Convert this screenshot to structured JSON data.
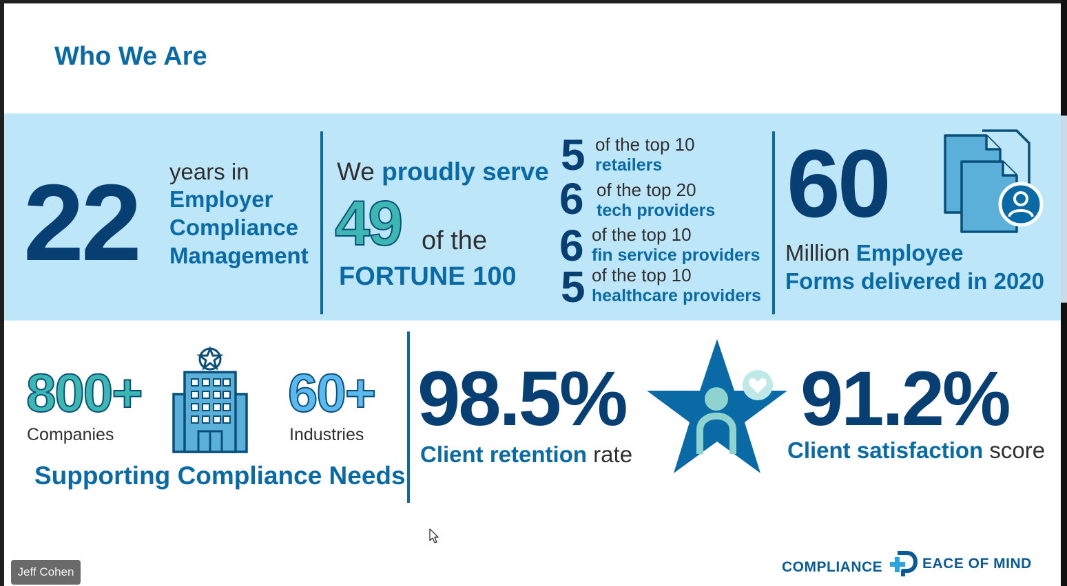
{
  "slide_title": "Who We Are",
  "years": {
    "number": "22",
    "line1": "years in",
    "line2": "Employer",
    "line3": "Compliance",
    "line4": "Management"
  },
  "fortune": {
    "lead": "We ",
    "lead_bold": "proudly serve",
    "number": "49",
    "of_the": "of the",
    "label": "FORTUNE 100"
  },
  "stats": [
    {
      "number": "5",
      "line1": "of the top 10",
      "line2": "retailers"
    },
    {
      "number": "6",
      "line1": "of the top 20",
      "line2": "tech providers"
    },
    {
      "number": "6",
      "line1": "of the top 10",
      "line2": "fin service providers"
    },
    {
      "number": "5",
      "line1": "of the top 10",
      "line2": "healthcare providers"
    }
  ],
  "forms": {
    "number": "60",
    "line1_plain": "Million ",
    "line1_bold": "Employee",
    "line2": "Forms delivered in 2020"
  },
  "companies": {
    "number": "800+",
    "label": "Companies"
  },
  "industries": {
    "number": "60+",
    "label": "Industries"
  },
  "supporting": "Supporting Compliance Needs",
  "retention": {
    "number": "98.5%",
    "label_bold": "Client retention",
    "label_plain": " rate"
  },
  "satisfaction": {
    "number": "91.2%",
    "label_bold": "Client satisfaction",
    "label_plain": " score"
  },
  "logo": {
    "left": "COMPLIANCE",
    "right": "EACE OF MIND"
  },
  "participant_name": "Jeff Cohen",
  "colors": {
    "navy": "#073f73",
    "blue": "#0a6aa6",
    "band": "#bee6f9",
    "teal": "#3db7b2",
    "sky": "#5ab9ee"
  },
  "icons": [
    "documents-user-icon",
    "office-building-icon",
    "star-person-icon",
    "mouse-cursor-icon",
    "logo-cross-p-icon"
  ]
}
